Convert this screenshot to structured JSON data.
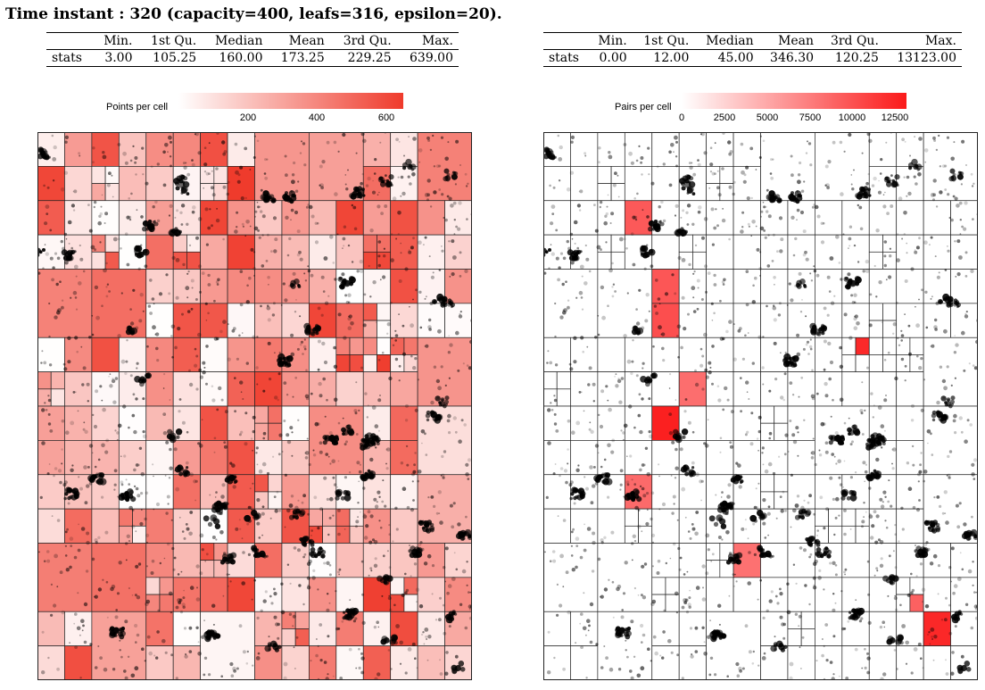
{
  "title": "Time instant : 320 (capacity=400, leafs=316, epsilon=20).",
  "chart_data": [
    {
      "type": "heatmap",
      "subject": "quadtree cells colored by points per cell",
      "legend_label": "Points per cell",
      "color_scale": {
        "min": 0,
        "max": 650,
        "low_color": "#ffffff",
        "high_color": "#ef3b2c"
      },
      "legend_ticks": [
        "200",
        "400",
        "600"
      ],
      "stats_table": {
        "headers": [
          "",
          "Min.",
          "1st Qu.",
          "Median",
          "Mean",
          "3rd Qu.",
          "Max."
        ],
        "row": [
          "stats",
          "3.00",
          "105.25",
          "160.00",
          "173.25",
          "229.25",
          "639.00"
        ]
      }
    },
    {
      "type": "heatmap",
      "subject": "quadtree cells colored by pairs per cell",
      "legend_label": "Pairs per cell",
      "color_scale": {
        "min": 0,
        "max": 13123,
        "low_color": "#ffffff",
        "high_color": "#fb1a1a"
      },
      "legend_ticks": [
        "0",
        "2500",
        "5000",
        "7500",
        "10000",
        "12500"
      ],
      "stats_table": {
        "headers": [
          "",
          "Min.",
          "1st Qu.",
          "Median",
          "Mean",
          "3rd Qu.",
          "Max."
        ],
        "row": [
          "stats",
          "0.00",
          "12.00",
          "45.00",
          "346.30",
          "120.25",
          "13123.00"
        ]
      }
    }
  ]
}
